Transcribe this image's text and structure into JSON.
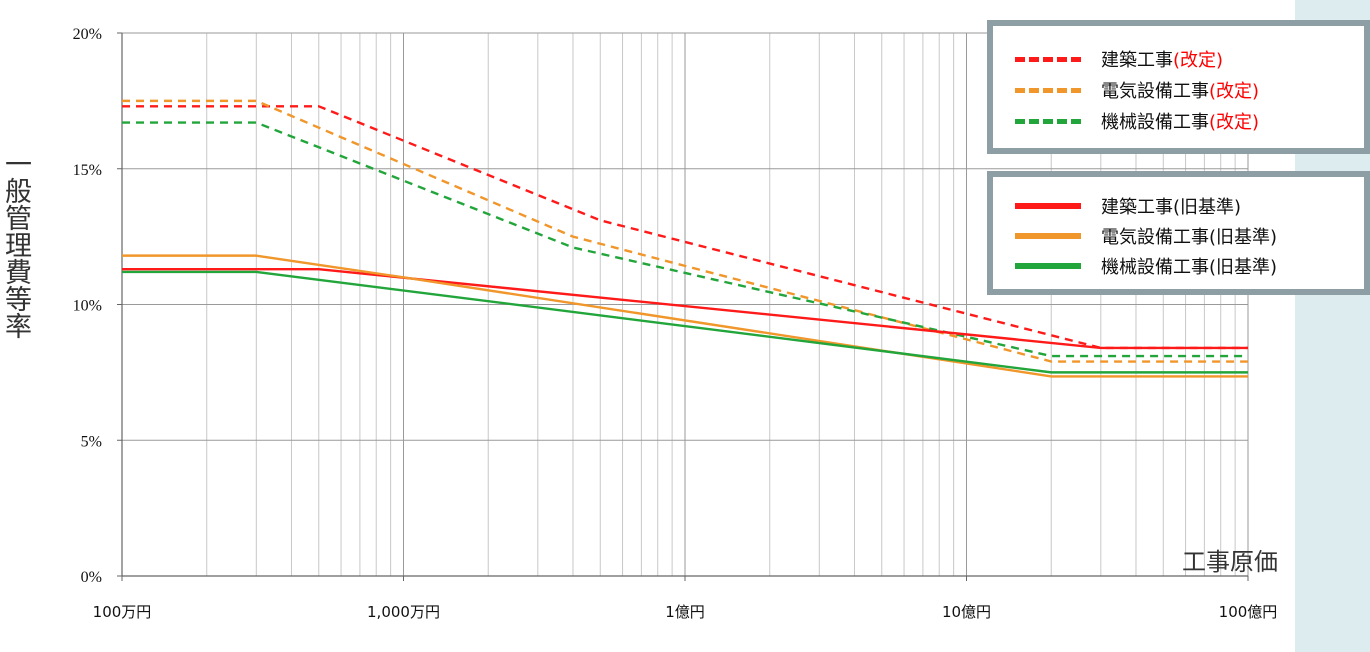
{
  "chart_data": {
    "type": "line",
    "xlabel": "工事原価",
    "ylabel": "一般管理費等率",
    "x_scale": "log",
    "x_ticks": [
      "100万円",
      "1,000万円",
      "1億円",
      "10億円",
      "100億円"
    ],
    "y_ticks": [
      "0%",
      "5%",
      "10%",
      "15%",
      "20%"
    ],
    "ylim": [
      0,
      20
    ],
    "grid": true,
    "series": [
      {
        "name": "建築工事",
        "suffix": "(改定)",
        "suffix_color": "#ff0000",
        "color": "#ff1a1a",
        "style": "dashed",
        "points": [
          [
            1,
            17.3
          ],
          [
            5,
            17.3
          ],
          [
            50,
            13.1
          ],
          [
            3000,
            8.4
          ],
          [
            10000,
            8.4
          ]
        ]
      },
      {
        "name": "電気設備工事",
        "suffix": "(改定)",
        "suffix_color": "#ff0000",
        "color": "#f0962a",
        "style": "dashed",
        "points": [
          [
            1,
            17.5
          ],
          [
            3,
            17.5
          ],
          [
            40,
            12.5
          ],
          [
            2000,
            7.9
          ],
          [
            10000,
            7.9
          ]
        ]
      },
      {
        "name": "機械設備工事",
        "suffix": "(改定)",
        "suffix_color": "#ff0000",
        "color": "#22a53a",
        "style": "dashed",
        "points": [
          [
            1,
            16.7
          ],
          [
            3,
            16.7
          ],
          [
            40,
            12.1
          ],
          [
            2000,
            8.1
          ],
          [
            10000,
            8.1
          ]
        ]
      },
      {
        "name": "建築工事",
        "suffix": "(旧基準)",
        "suffix_color": "#111111",
        "color": "#ff1a1a",
        "style": "solid",
        "points": [
          [
            1,
            11.3
          ],
          [
            5,
            11.3
          ],
          [
            3000,
            8.4
          ],
          [
            10000,
            8.4
          ]
        ]
      },
      {
        "name": "電気設備工事",
        "suffix": "(旧基準)",
        "suffix_color": "#111111",
        "color": "#f0962a",
        "style": "solid",
        "points": [
          [
            1,
            11.8
          ],
          [
            3,
            11.8
          ],
          [
            10,
            11.0
          ],
          [
            2000,
            7.35
          ],
          [
            10000,
            7.35
          ]
        ]
      },
      {
        "name": "機械設備工事",
        "suffix": "(旧基準)",
        "suffix_color": "#111111",
        "color": "#22a53a",
        "style": "solid",
        "points": [
          [
            1,
            11.2
          ],
          [
            3,
            11.2
          ],
          [
            2000,
            7.5
          ],
          [
            10000,
            7.5
          ]
        ]
      }
    ]
  }
}
